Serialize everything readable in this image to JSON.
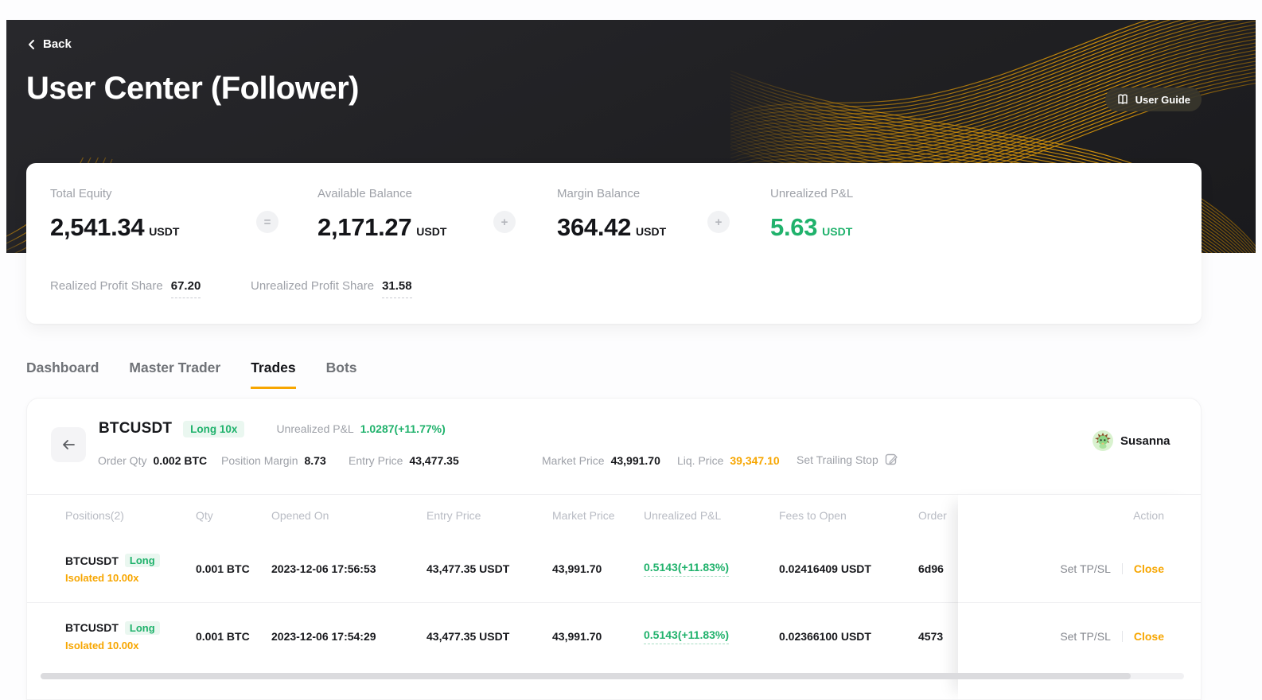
{
  "colors": {
    "brand_yellow": "#f7a600",
    "positive_green": "#20b26c",
    "header_bg": "#202023"
  },
  "hero": {
    "back_label": "Back",
    "title": "User Center (Follower)",
    "user_guide_label": "User Guide"
  },
  "balance": {
    "metrics": [
      {
        "label": "Total Equity",
        "value": "2,541.34",
        "unit": "USDT"
      },
      {
        "label": "Available Balance",
        "value": "2,171.27",
        "unit": "USDT"
      },
      {
        "label": "Margin Balance",
        "value": "364.42",
        "unit": "USDT"
      },
      {
        "label": "Unrealized P&L",
        "value": "5.63",
        "unit": "USDT"
      }
    ],
    "operators": [
      "=",
      "+",
      "+"
    ],
    "profit_shares": [
      {
        "label": "Realized Profit Share",
        "value": "67.20"
      },
      {
        "label": "Unrealized Profit Share",
        "value": "31.58"
      }
    ]
  },
  "tabs": [
    {
      "label": "Dashboard",
      "active": false
    },
    {
      "label": "Master Trader",
      "active": false
    },
    {
      "label": "Trades",
      "active": true
    },
    {
      "label": "Bots",
      "active": false
    }
  ],
  "position_summary": {
    "symbol": "BTCUSDT",
    "side_badge": "Long 10x",
    "upl_label": "Unrealized P&L",
    "upl_value": "1.0287(+11.77%)",
    "meta": [
      {
        "label": "Order Qty",
        "value": "0.002 BTC"
      },
      {
        "label": "Position Margin",
        "value": "8.73"
      },
      {
        "label": "Entry Price",
        "value": "43,477.35"
      },
      {
        "label": "Market Price",
        "value": "43,991.70"
      },
      {
        "label": "Liq. Price",
        "value": "39,347.10"
      }
    ],
    "trailing_stop_label": "Set Trailing Stop",
    "trader_name": "Susanna"
  },
  "positions_table": {
    "headers": [
      "Positions(2)",
      "Qty",
      "Opened On",
      "Entry Price",
      "Market Price",
      "Unrealized P&L",
      "Fees to Open",
      "Order",
      "Action"
    ],
    "set_tpsl_label": "Set TP/SL",
    "close_label": "Close",
    "rows": [
      {
        "symbol": "BTCUSDT",
        "side": "Long",
        "margin_mode": "Isolated 10.00x",
        "qty": "0.001 BTC",
        "opened_on": "2023-12-06 17:56:53",
        "entry_price": "43,477.35 USDT",
        "market_price": "43,991.70",
        "unrealized_pnl": "0.5143(+11.83%)",
        "fees_to_open": "0.02416409 USDT",
        "order_no": "6d96"
      },
      {
        "symbol": "BTCUSDT",
        "side": "Long",
        "margin_mode": "Isolated 10.00x",
        "qty": "0.001 BTC",
        "opened_on": "2023-12-06 17:54:29",
        "entry_price": "43,477.35 USDT",
        "market_price": "43,991.70",
        "unrealized_pnl": "0.5143(+11.83%)",
        "fees_to_open": "0.02366100 USDT",
        "order_no": "4573"
      }
    ]
  }
}
